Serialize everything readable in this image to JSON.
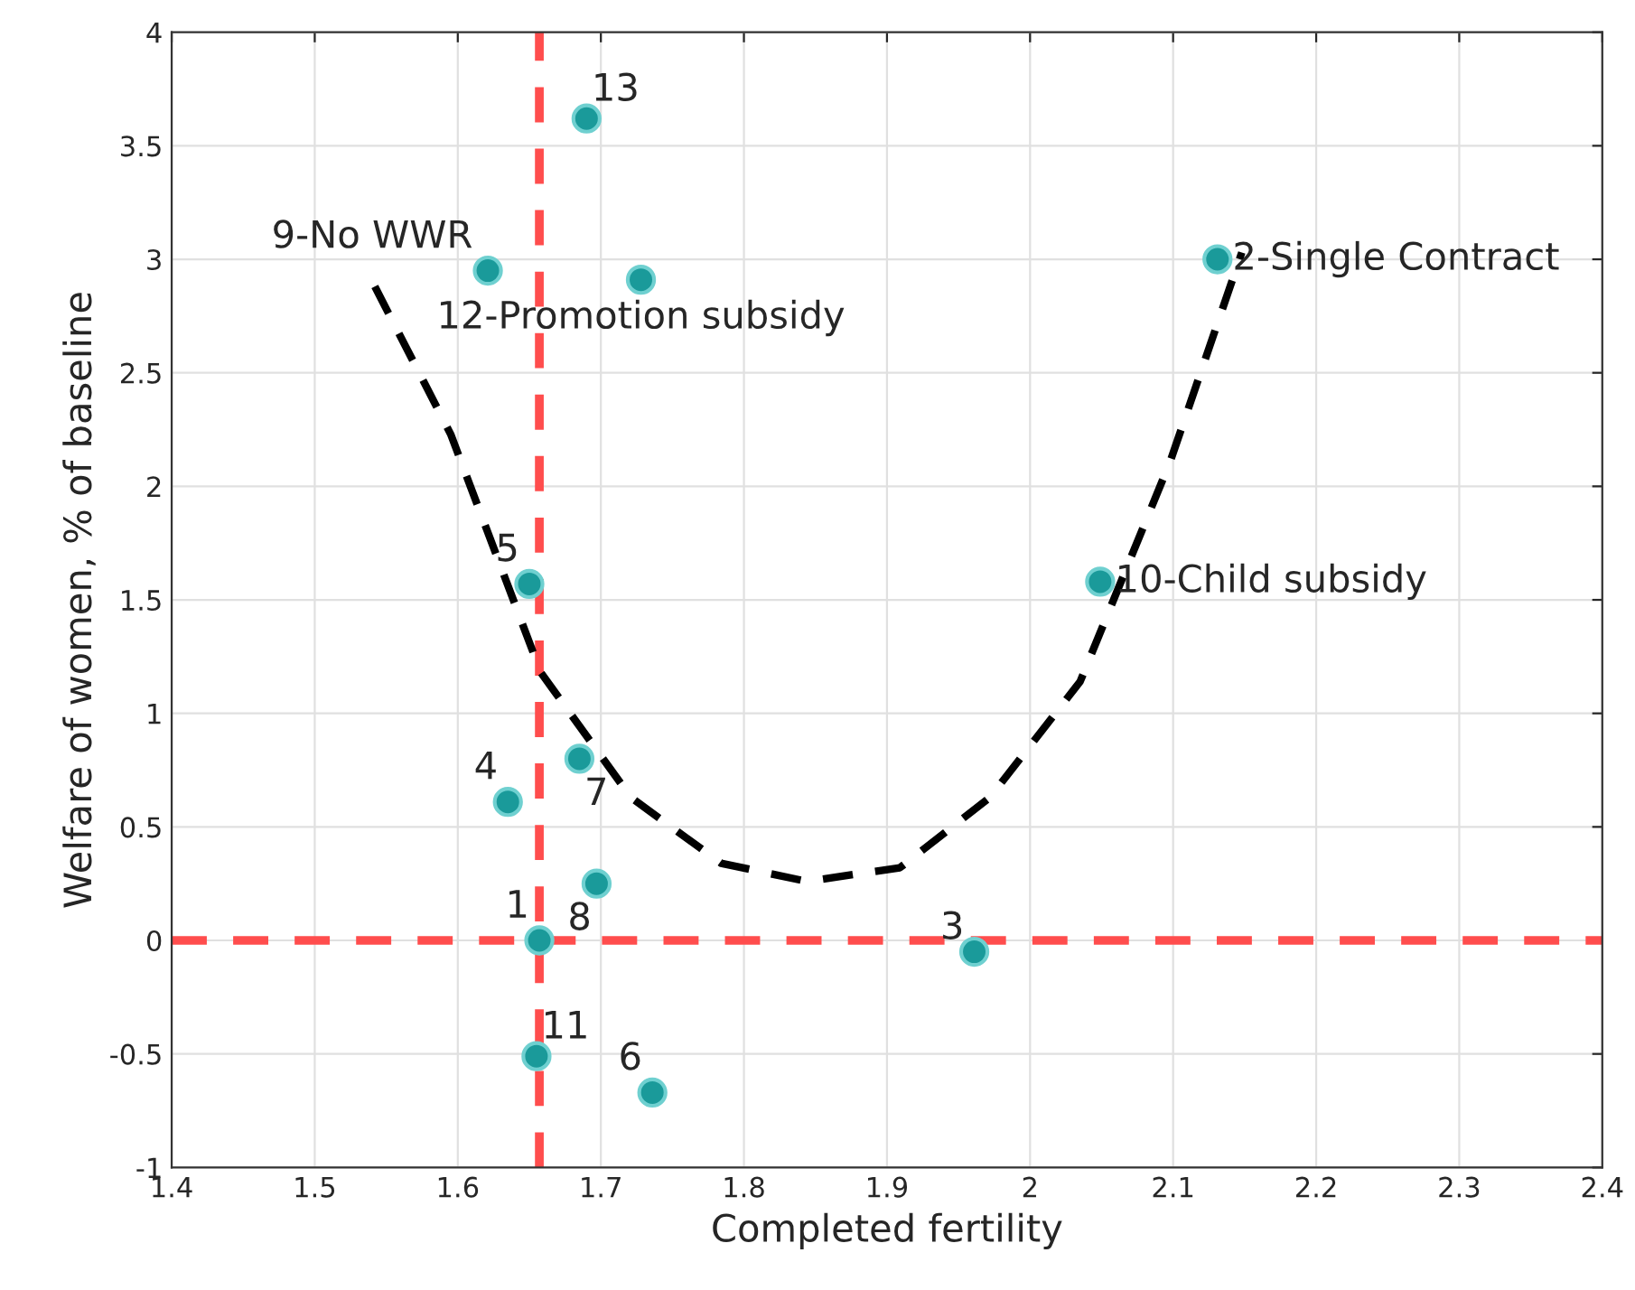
{
  "chart_data": {
    "type": "scatter",
    "xlabel": "Completed fertility",
    "ylabel": "Welfare of women, % of baseline",
    "xlim": [
      1.4,
      2.4
    ],
    "ylim": [
      -1,
      4
    ],
    "xticks": [
      1.4,
      1.5,
      1.6,
      1.7,
      1.8,
      1.9,
      2,
      2.1,
      2.2,
      2.3,
      2.4
    ],
    "yticks": [
      -1,
      -0.5,
      0,
      0.5,
      1,
      1.5,
      2,
      2.5,
      3,
      3.5,
      4
    ],
    "grid": true,
    "series": [
      {
        "marker": "circle",
        "color": "#1a9a9a",
        "x": [
          1.69,
          1.621,
          1.728,
          2.131,
          1.65,
          2.049,
          1.685,
          1.635,
          1.697,
          1.657,
          1.961,
          1.655,
          1.736
        ],
        "values": [
          3.62,
          2.95,
          2.91,
          3.0,
          1.57,
          1.58,
          0.8,
          0.61,
          0.25,
          0.0,
          -0.05,
          -0.51,
          -0.67
        ]
      },
      {
        "type": "line",
        "marker": "none",
        "color": "#000000",
        "line_style": "dashed",
        "x": [
          1.542,
          1.595,
          1.658,
          1.721,
          1.784,
          1.844,
          1.909,
          1.972,
          2.035,
          2.098,
          2.148
        ],
        "values": [
          2.88,
          2.23,
          1.18,
          0.63,
          0.34,
          0.26,
          0.32,
          0.63,
          1.14,
          2.11,
          3.03
        ]
      }
    ],
    "ref_lines": [
      {
        "axis": "x",
        "value": 1.657,
        "color": "#ff4d4d",
        "line_style": "dashed"
      },
      {
        "axis": "y",
        "value": 0,
        "color": "#ff4d4d",
        "line_style": "dashed"
      }
    ],
    "annotations": [
      {
        "text": "13",
        "x": 1.69,
        "y": 3.62
      },
      {
        "text": "9-No WWR",
        "x": 1.621,
        "y": 2.95
      },
      {
        "text": "12-Promotion subsidy",
        "x": 1.728,
        "y": 2.91
      },
      {
        "text": "2-Single Contract",
        "x": 2.131,
        "y": 3.0
      },
      {
        "text": "5",
        "x": 1.65,
        "y": 1.57
      },
      {
        "text": "10-Child subsidy",
        "x": 2.049,
        "y": 1.58
      },
      {
        "text": "7",
        "x": 1.685,
        "y": 0.8
      },
      {
        "text": "4",
        "x": 1.635,
        "y": 0.61
      },
      {
        "text": "8",
        "x": 1.697,
        "y": 0.25
      },
      {
        "text": "1",
        "x": 1.657,
        "y": 0.0
      },
      {
        "text": "3",
        "x": 1.961,
        "y": -0.05
      },
      {
        "text": "11",
        "x": 1.655,
        "y": -0.51
      },
      {
        "text": "6",
        "x": 1.736,
        "y": -0.67
      }
    ]
  }
}
